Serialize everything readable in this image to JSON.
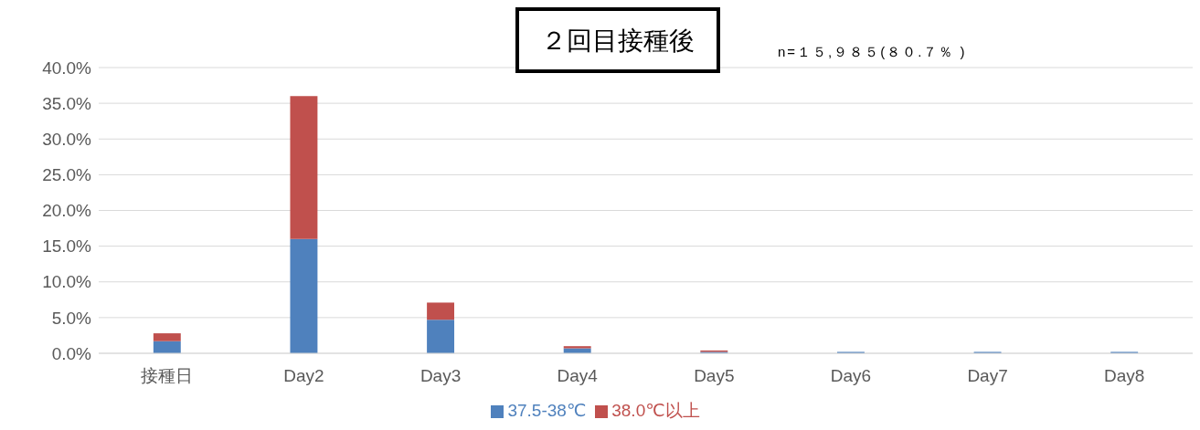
{
  "chart_data": {
    "type": "bar",
    "title": "２回目接種後",
    "subtitle": "n=１５,９８５(８０.７％ )",
    "categories": [
      "接種日",
      "Day2",
      "Day3",
      "Day4",
      "Day5",
      "Day6",
      "Day7",
      "Day8"
    ],
    "series": [
      {
        "name": "37.5-38℃",
        "color": "#4f81bd",
        "values": [
          1.7,
          16.0,
          4.7,
          0.7,
          0.2,
          0.2,
          0.2,
          0.2
        ]
      },
      {
        "name": "38.0℃以上",
        "color": "#c0504d",
        "values": [
          1.1,
          20.0,
          2.4,
          0.3,
          0.2,
          null,
          null,
          null
        ]
      }
    ],
    "stacked": true,
    "ylim": [
      0,
      40
    ],
    "yticks": [
      {
        "value": 0,
        "label": "0.0%"
      },
      {
        "value": 5,
        "label": "5.0%"
      },
      {
        "value": 10,
        "label": "10.0%"
      },
      {
        "value": 15,
        "label": "15.0%"
      },
      {
        "value": 20,
        "label": "20.0%"
      },
      {
        "value": 25,
        "label": "25.0%"
      },
      {
        "value": 30,
        "label": "30.0%"
      },
      {
        "value": 35,
        "label": "35.0%"
      },
      {
        "value": 40,
        "label": "40.0%"
      }
    ],
    "grid": "y",
    "legend": "bottom"
  }
}
